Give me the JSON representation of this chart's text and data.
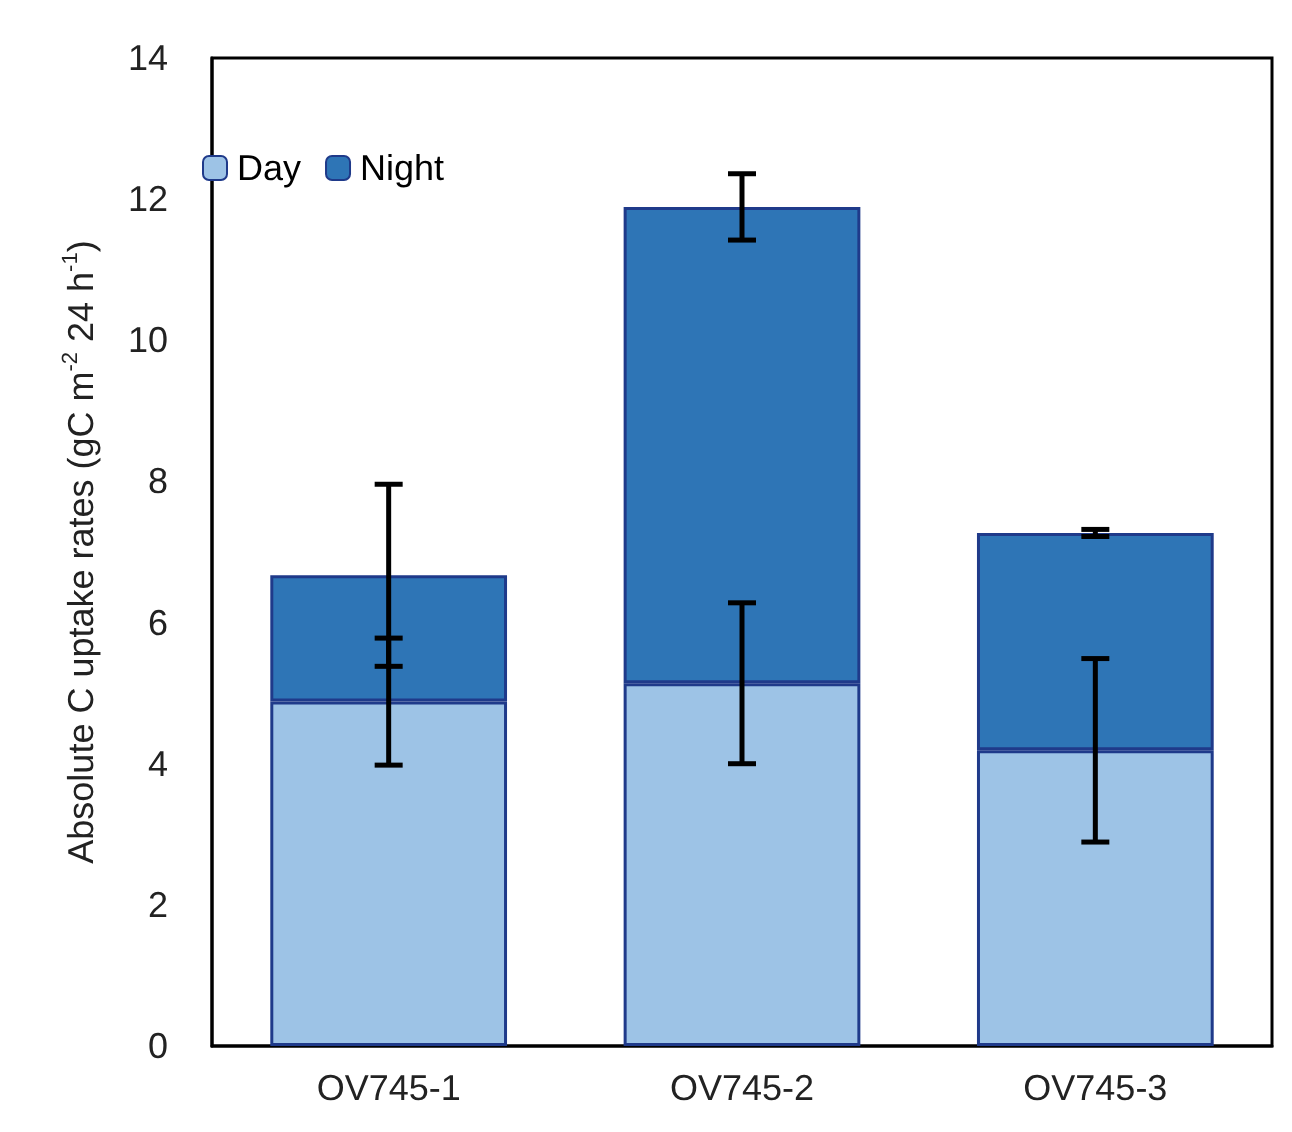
{
  "chart_data": {
    "type": "bar",
    "stacked": true,
    "ylabel": "Absolute C uptake rates (gC m$^{-2}$ 24 h$^{-1}$)",
    "categories": [
      "OV745-1",
      "OV745-2",
      "OV745-3"
    ],
    "series": [
      {
        "name": "Day",
        "color": "#9dc3e6",
        "values": [
          4.88,
          5.14,
          4.19
        ],
        "errors": [
          0.9,
          1.14,
          1.3
        ]
      },
      {
        "name": "Night",
        "color": "#2e75b6",
        "values": [
          1.79,
          6.75,
          3.08
        ],
        "errors": [
          1.29,
          0.47,
          0.05
        ]
      }
    ],
    "ylim": [
      0,
      14
    ],
    "yticks": [
      0,
      2,
      4,
      6,
      8,
      10,
      12,
      14
    ],
    "grid": false,
    "legend": "top left"
  }
}
